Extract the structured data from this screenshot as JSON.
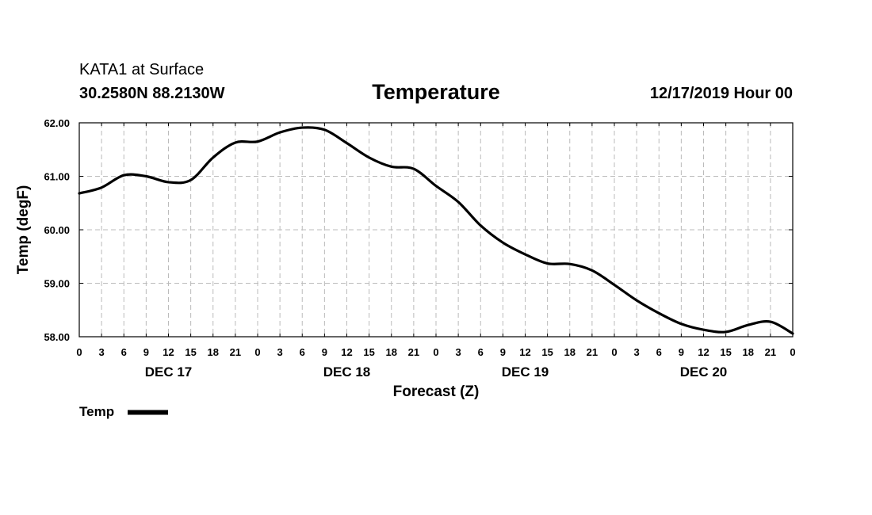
{
  "header": {
    "station": "KATA1 at Surface",
    "location": "30.2580N 88.2130W",
    "title": "Temperature",
    "datetime": "12/17/2019 Hour 00"
  },
  "chart_data": {
    "type": "line",
    "title": "Temperature",
    "xlabel": "Forecast (Z)",
    "ylabel": "Temp (degF)",
    "ylim": [
      58.0,
      62.0
    ],
    "yticks": [
      "58.00",
      "59.00",
      "60.00",
      "61.00",
      "62.00"
    ],
    "xlim_hours": [
      0,
      96
    ],
    "xtick_labels": [
      "0",
      "3",
      "6",
      "9",
      "12",
      "15",
      "18",
      "21",
      "0",
      "3",
      "6",
      "9",
      "12",
      "15",
      "18",
      "21",
      "0",
      "3",
      "6",
      "9",
      "12",
      "15",
      "18",
      "21",
      "0",
      "3",
      "6",
      "9",
      "12",
      "15",
      "18",
      "21",
      "0"
    ],
    "day_labels": [
      {
        "label": "DEC 17",
        "hour": 12
      },
      {
        "label": "DEC 18",
        "hour": 36
      },
      {
        "label": "DEC 19",
        "hour": 60
      },
      {
        "label": "DEC 20",
        "hour": 84
      }
    ],
    "grid": true,
    "legend": {
      "label": "Temp",
      "position": "bottom-left"
    },
    "series": [
      {
        "name": "Temp",
        "color": "#000000",
        "x_hours": [
          0,
          3,
          6,
          9,
          12,
          15,
          18,
          21,
          24,
          27,
          30,
          33,
          36,
          39,
          42,
          45,
          48,
          51,
          54,
          57,
          60,
          63,
          66,
          69,
          72,
          75,
          78,
          81,
          84,
          87,
          90,
          93,
          96
        ],
        "values": [
          60.68,
          60.79,
          61.02,
          61.0,
          60.89,
          60.93,
          61.35,
          61.63,
          61.65,
          61.82,
          61.91,
          61.87,
          61.62,
          61.35,
          61.18,
          61.14,
          60.82,
          60.52,
          60.08,
          59.76,
          59.54,
          59.37,
          59.36,
          59.24,
          58.97,
          58.68,
          58.44,
          58.24,
          58.13,
          58.09,
          58.22,
          58.28,
          58.06
        ]
      }
    ]
  }
}
